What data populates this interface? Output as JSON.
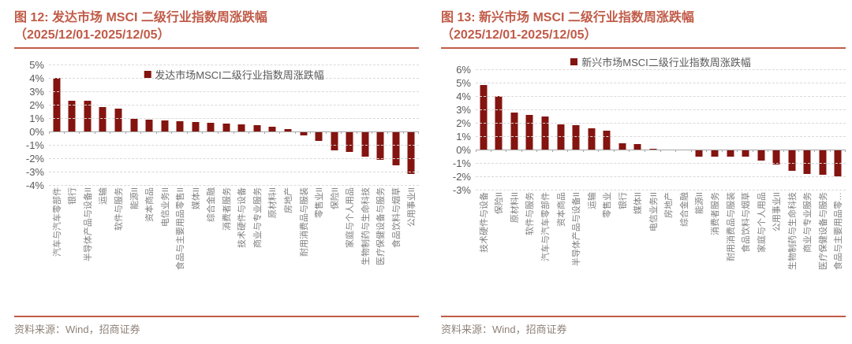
{
  "colors": {
    "accent": "#c05b48",
    "bar": "#841410",
    "axis_text": "#595959",
    "x_label_text": "#7f7f7f",
    "grid": "#d9d9d9",
    "zero_axis": "#a6a6a6",
    "source_text": "#8e8279",
    "background": "#ffffff"
  },
  "chart_data": [
    {
      "type": "bar",
      "title_line1": "图 12: 发达市场 MSCI 二级行业指数周涨跌幅",
      "title_line2": "（2025/12/01-2025/12/05）",
      "title": "图 12: 发达市场 MSCI 二级行业指数周涨跌幅（2025/12/01-2025/12/05）",
      "legend": "发达市场MSCI二级行业指数周涨跌幅",
      "legend_position": "top-inside",
      "source": "资料来源：Wind，招商证券",
      "grid": "horizontal-dashed",
      "ylim": [
        -4,
        5
      ],
      "y_tick_step": 1,
      "y_tick_suffix": "%",
      "bar_color": "#841410",
      "categories": [
        "汽车与汽车零部件",
        "银行",
        "半导体产品与设备II",
        "运输",
        "软件与服务",
        "能源II",
        "资本商品",
        "电信业务II",
        "食品与主要用品零售II",
        "媒体II",
        "综合金融",
        "消费者服务",
        "技术硬件与设备",
        "商业与专业服务",
        "原材料II",
        "房地产",
        "耐用消费品与服装",
        "零售业II",
        "保险II",
        "家庭与个人用品",
        "生物制药与生命科技",
        "医疗保健设备与服务",
        "食品饮料与烟草",
        "公用事业II"
      ],
      "values": [
        4.0,
        2.3,
        2.3,
        1.8,
        1.7,
        0.95,
        0.9,
        0.8,
        0.75,
        0.7,
        0.65,
        0.6,
        0.55,
        0.5,
        0.35,
        0.2,
        -0.3,
        -0.7,
        -1.4,
        -1.5,
        -1.9,
        -2.1,
        -2.5,
        -3.2
      ]
    },
    {
      "type": "bar",
      "title_line1": "图 13: 新兴市场 MSCI 二级行业指数周涨跌幅",
      "title_line2": "（2025/12/01-2025/12/05）",
      "title": "图 13: 新兴市场 MSCI 二级行业指数周涨跌幅（2025/12/01-2025/12/05）",
      "legend": "新兴市场MSCI二级行业指数周涨跌幅",
      "legend_position": "top-outside",
      "source": "资料来源：Wind，招商证券",
      "grid": "horizontal-dashed",
      "ylim": [
        -3,
        6
      ],
      "y_tick_step": 1,
      "y_tick_suffix": "%",
      "bar_color": "#841410",
      "categories": [
        "技术硬件与设备",
        "保险II",
        "原材料II",
        "软件与服务",
        "汽车与汽车零部件",
        "资本商品",
        "半导体产品与设备II",
        "运输",
        "零售业",
        "银行",
        "媒体II",
        "电信业务II",
        "房地产",
        "综合金融",
        "能源II",
        "消费者服务",
        "耐用消费品与服装",
        "食品饮料与烟草",
        "家庭与个人用品",
        "公用事业II",
        "生物制药与生命科技",
        "商业与专业服务",
        "医疗保健设备与服务",
        "食品与主要用品零…"
      ],
      "values": [
        4.8,
        4.0,
        2.75,
        2.6,
        2.5,
        1.9,
        1.8,
        1.6,
        1.4,
        0.45,
        0.4,
        0.05,
        0.0,
        -0.05,
        -0.55,
        -0.5,
        -0.5,
        -0.55,
        -0.8,
        -1.1,
        -1.6,
        -1.85,
        -1.9,
        -2.0
      ]
    }
  ]
}
